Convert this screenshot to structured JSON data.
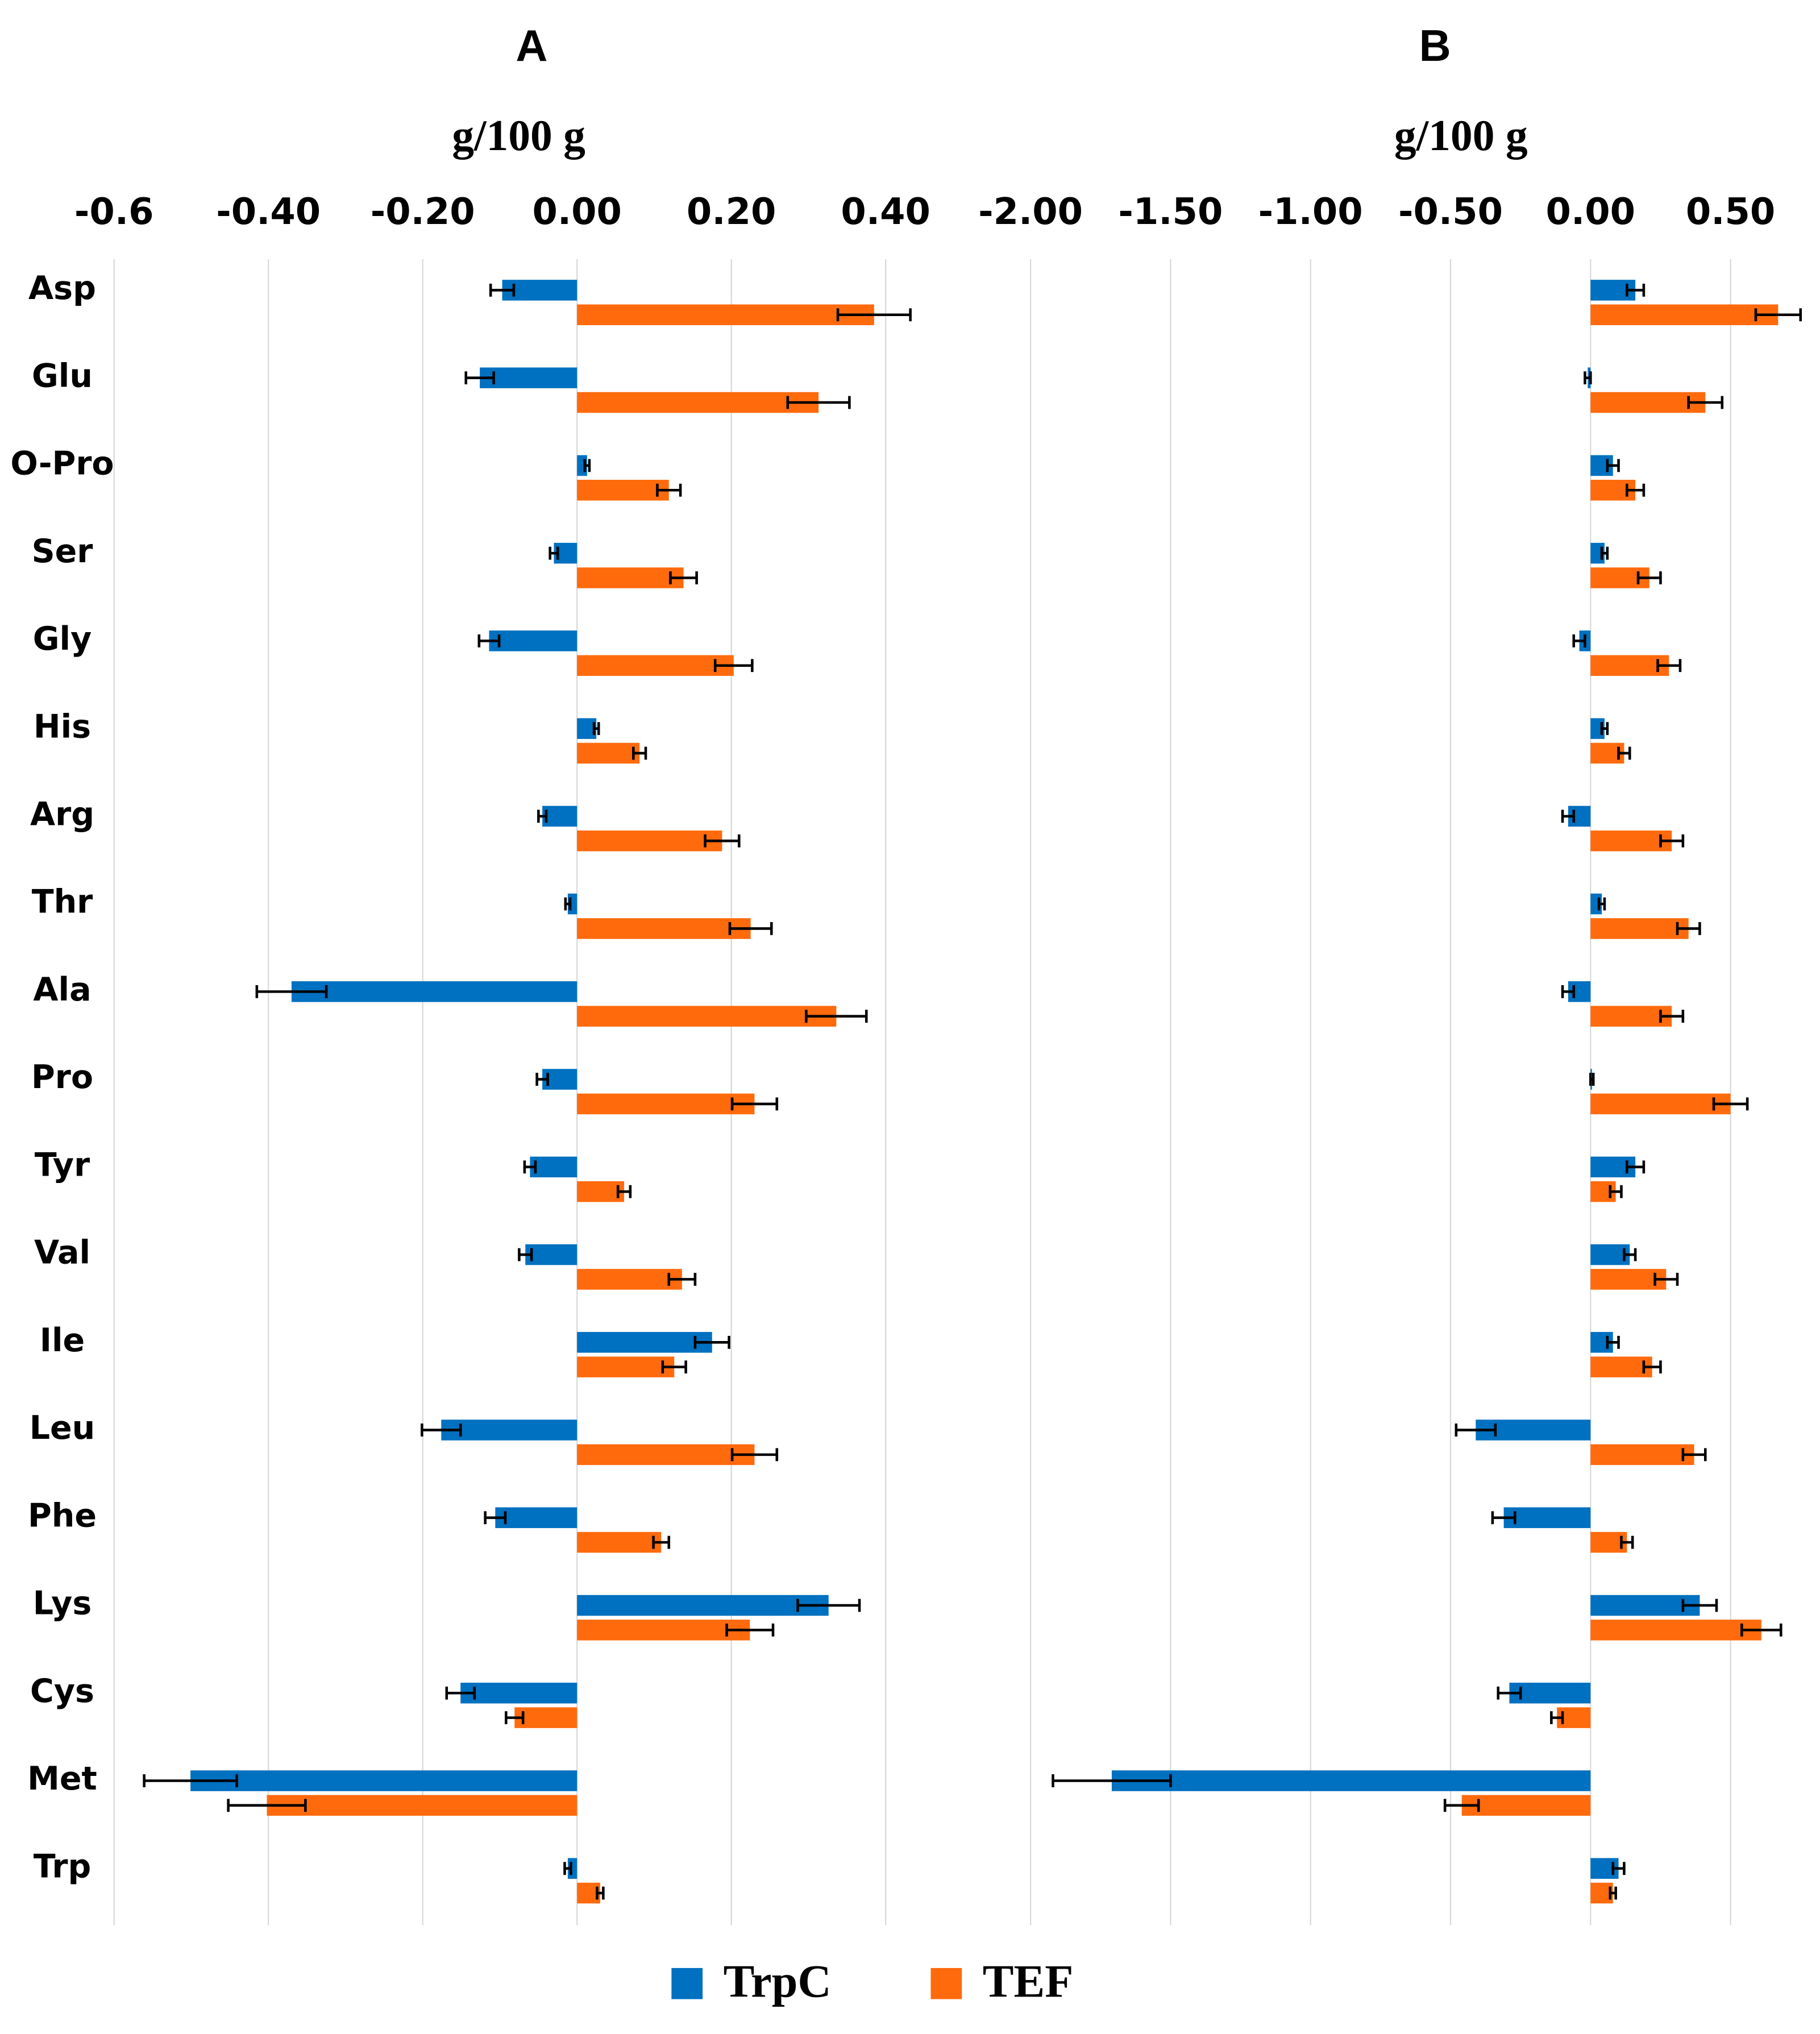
{
  "chart_data": [
    {
      "type": "bar",
      "orientation": "horizontal",
      "title": "A",
      "xlabel": "g/100 g",
      "categories": [
        "Asp",
        "Glu",
        "O-Pro",
        "Ser",
        "Gly",
        "His",
        "Arg",
        "Thr",
        "Ala",
        "Pro",
        "Tyr",
        "Val",
        "Ile",
        "Leu",
        "Phe",
        "Lys",
        "Cys",
        "Met",
        "Trp"
      ],
      "series": [
        {
          "name": "TrpC",
          "color": "#0070c0",
          "values": [
            -0.097,
            -0.126,
            0.013,
            -0.03,
            -0.114,
            0.025,
            -0.045,
            -0.012,
            -0.37,
            -0.045,
            -0.061,
            -0.067,
            0.175,
            -0.176,
            -0.106,
            0.326,
            -0.151,
            -0.501,
            -0.012
          ],
          "errors": [
            0.015,
            0.018,
            0.003,
            0.005,
            0.013,
            0.003,
            0.005,
            0.003,
            0.045,
            0.007,
            0.007,
            0.008,
            0.022,
            0.025,
            0.013,
            0.04,
            0.018,
            0.06,
            0.004
          ]
        },
        {
          "name": "TEF",
          "color": "#ff6a0d",
          "values": [
            0.385,
            0.313,
            0.119,
            0.138,
            0.203,
            0.081,
            0.188,
            0.225,
            0.336,
            0.23,
            0.061,
            0.136,
            0.126,
            0.23,
            0.109,
            0.224,
            -0.081,
            -0.402,
            0.03
          ],
          "errors": [
            0.047,
            0.04,
            0.015,
            0.017,
            0.024,
            0.008,
            0.022,
            0.027,
            0.039,
            0.029,
            0.008,
            0.017,
            0.015,
            0.029,
            0.01,
            0.03,
            0.011,
            0.05,
            0.004
          ]
        }
      ],
      "xlim": [
        -0.6,
        0.45
      ],
      "xticks": [
        -0.6,
        {
          "value": -0.4,
          "label": "-0.40"
        },
        {
          "value": -0.2,
          "label": "-0.20"
        },
        {
          "value": 0,
          "label": "0.00"
        },
        {
          "value": 0.2,
          "label": "0.20"
        },
        {
          "value": 0.4,
          "label": "0.40"
        }
      ],
      "grid": true
    },
    {
      "type": "bar",
      "orientation": "horizontal",
      "title": "B",
      "xlabel": "g/100 g",
      "series": [
        {
          "color": "#0070c0",
          "values": [
            0.16,
            -0.01,
            0.08,
            0.05,
            -0.04,
            0.05,
            -0.08,
            0.04,
            -0.08,
            0.005,
            0.16,
            0.14,
            0.08,
            -0.41,
            -0.31,
            0.39,
            -0.29,
            -1.71,
            0.1
          ],
          "errors": [
            0.03,
            0.01,
            0.02,
            0.01,
            0.02,
            0.01,
            0.02,
            0.01,
            0.02,
            0.005,
            0.03,
            0.02,
            0.02,
            0.07,
            0.04,
            0.06,
            0.04,
            0.21,
            0.02
          ]
        },
        {
          "color": "#ff6a0d",
          "values": [
            0.67,
            0.41,
            0.16,
            0.21,
            0.28,
            0.12,
            0.29,
            0.35,
            0.29,
            0.5,
            0.09,
            0.27,
            0.22,
            0.37,
            0.13,
            0.61,
            -0.12,
            -0.46,
            0.08
          ],
          "errors": [
            0.08,
            0.06,
            0.03,
            0.04,
            0.04,
            0.02,
            0.04,
            0.04,
            0.04,
            0.06,
            0.02,
            0.04,
            0.03,
            0.04,
            0.02,
            0.07,
            0.02,
            0.06,
            0.01
          ]
        }
      ],
      "xlim": [
        -2,
        0.75
      ],
      "xticks": [
        {
          "value": -2,
          "label": "-2.00"
        },
        {
          "value": -1.5,
          "label": "-1.50"
        },
        {
          "value": -1,
          "label": "-1.00"
        },
        {
          "value": -0.5,
          "label": "-0.50"
        },
        {
          "value": 0,
          "label": "0.00"
        },
        {
          "value": 0.5,
          "label": "0.50"
        }
      ],
      "grid": true
    }
  ]
}
